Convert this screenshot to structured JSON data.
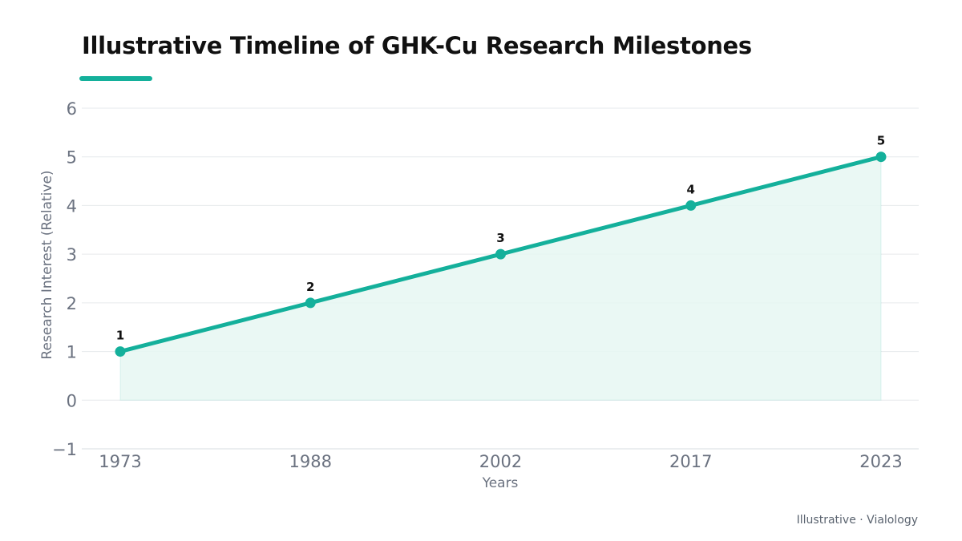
{
  "colors": {
    "accent": "#14b09b",
    "area_fill": "#e6f7f2",
    "grid": "#e6e9ec",
    "axis_text": "#6b7280",
    "title_text": "#111111",
    "point_label": "#111111"
  },
  "footer": {
    "text": "Illustrative · Vialology"
  },
  "chart_data": {
    "type": "line",
    "title": "Illustrative Timeline of GHK-Cu Research Milestones",
    "xlabel": "Years",
    "ylabel": "Research Interest (Relative)",
    "categories": [
      "1973",
      "1988",
      "2002",
      "2017",
      "2023"
    ],
    "series": [
      {
        "values": [
          1,
          2,
          3,
          4,
          5
        ],
        "point_labels": [
          "1",
          "2",
          "3",
          "4",
          "5"
        ]
      }
    ],
    "ylim": [
      -1,
      6
    ],
    "yticks": [
      -1,
      0,
      1,
      2,
      3,
      4,
      5,
      6
    ],
    "ytick_labels": [
      "−1",
      "0",
      "1",
      "2",
      "3",
      "4",
      "5",
      "6"
    ],
    "area_fill": true,
    "grid": true,
    "legend": "none"
  }
}
